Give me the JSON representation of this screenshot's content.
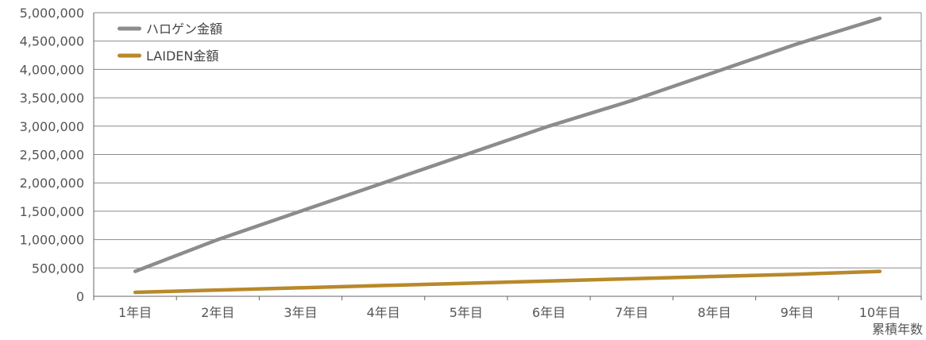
{
  "chart_data": {
    "type": "line",
    "xlabel": "累積年数",
    "ylabel": "",
    "categories": [
      "1年目",
      "2年目",
      "3年目",
      "4年目",
      "5年目",
      "6年目",
      "7年目",
      "8年目",
      "9年目",
      "10年目"
    ],
    "ylim": [
      0,
      5000000
    ],
    "yticks": [
      "0",
      "500,000",
      "1,000,000",
      "1,500,000",
      "2,000,000",
      "2,500,000",
      "3,000,000",
      "3,500,000",
      "4,000,000",
      "4,500,000",
      "5,000,000"
    ],
    "grid": true,
    "legend_position": "top-left",
    "series": [
      {
        "name": "ハロゲン金額",
        "color": "#8c8c8c",
        "values": [
          440000,
          1000000,
          1500000,
          2000000,
          2500000,
          3000000,
          3450000,
          3950000,
          4450000,
          4900000
        ]
      },
      {
        "name": "LAIDEN金額",
        "color": "#b8892a",
        "values": [
          70000,
          110000,
          150000,
          190000,
          230000,
          270000,
          310000,
          350000,
          390000,
          440000
        ]
      }
    ]
  }
}
